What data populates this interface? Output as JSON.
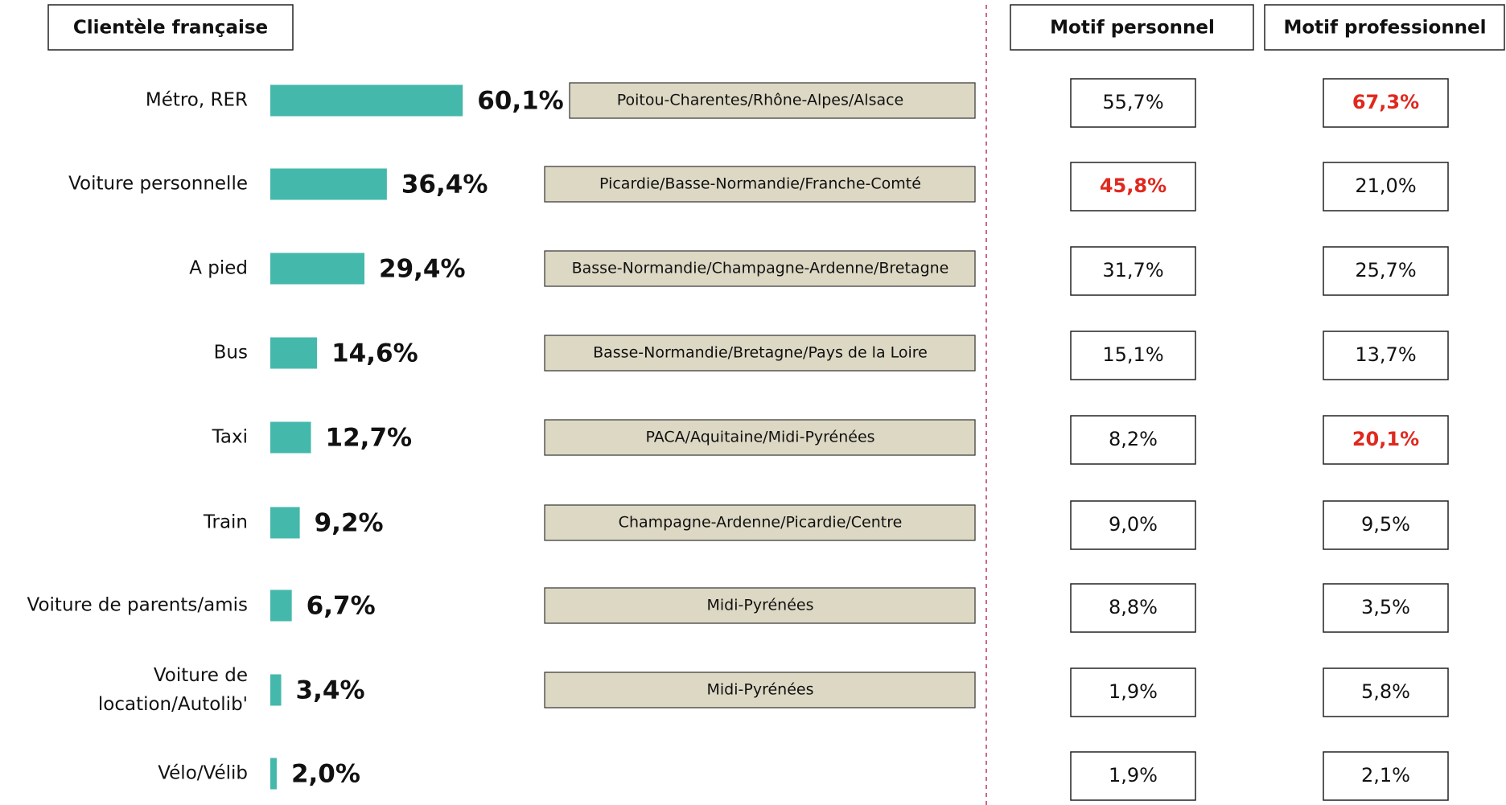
{
  "chart_data": {
    "type": "bar",
    "title": "Clientèle française",
    "categories": [
      "Métro, RER",
      "Voiture personnelle",
      "A pied",
      "Bus",
      "Taxi",
      "Train",
      "Voiture de parents/amis",
      "Voiture de location/Autolib'",
      "Vélo/Vélib"
    ],
    "values": [
      60.1,
      36.4,
      29.4,
      14.6,
      12.7,
      9.2,
      6.7,
      3.4,
      2.0
    ],
    "value_labels": [
      "60,1%",
      "36,4%",
      "29,4%",
      "14,6%",
      "12,7%",
      "9,2%",
      "6,7%",
      "3,4%",
      "2,0%"
    ],
    "color": "#45b8ac",
    "regions": [
      "Poitou-Charentes/Rhône-Alpes/Alsace",
      "Picardie/Basse-Normandie/Franche-Comté",
      "Basse-Normandie/Champagne-Ardenne/Bretagne",
      "Basse-Normandie/Bretagne/Pays de la Loire",
      "PACA/Aquitaine/Midi-Pyrénées",
      "Champagne-Ardenne/Picardie/Centre",
      "Midi-Pyrénées",
      "Midi-Pyrénées",
      null
    ],
    "region_color": "#ddd8c4",
    "highlight_color": "#e0281e",
    "columns": [
      {
        "name": "Motif personnel",
        "values": [
          55.7,
          45.8,
          31.7,
          15.1,
          8.2,
          9.0,
          8.8,
          1.9,
          1.9
        ],
        "value_labels": [
          "55,7%",
          "45,8%",
          "31,7%",
          "15,1%",
          "8,2%",
          "9,0%",
          "8,8%",
          "1,9%",
          "1,9%"
        ],
        "highlight": [
          false,
          true,
          false,
          false,
          false,
          false,
          false,
          false,
          false
        ]
      },
      {
        "name": "Motif professionnel",
        "values": [
          67.3,
          21.0,
          25.7,
          13.7,
          20.1,
          9.5,
          3.5,
          5.8,
          2.1
        ],
        "value_labels": [
          "67,3%",
          "21,0%",
          "25,7%",
          "13,7%",
          "20,1%",
          "9,5%",
          "3,5%",
          "5,8%",
          "2,1%"
        ],
        "highlight": [
          true,
          false,
          false,
          false,
          true,
          false,
          false,
          false,
          false
        ]
      }
    ]
  }
}
